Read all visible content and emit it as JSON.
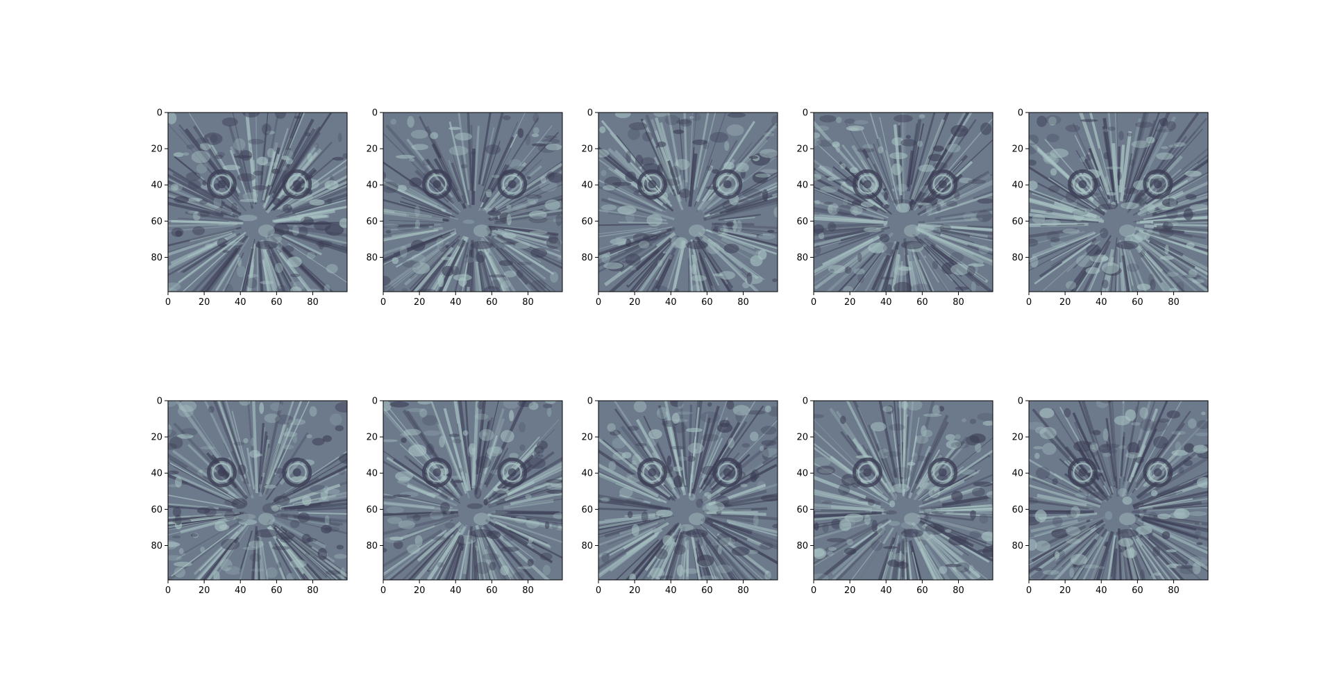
{
  "chart_data": [
    {
      "type": "heatmap",
      "panel": 1,
      "xlim": [
        0,
        99
      ],
      "ylim": [
        99,
        0
      ],
      "x_ticks": [
        0,
        20,
        40,
        60,
        80
      ],
      "y_ticks": [
        0,
        20,
        40,
        60,
        80
      ],
      "x_tick_labels": [
        "0",
        "20",
        "40",
        "60",
        "80"
      ],
      "y_tick_labels": [
        "0",
        "20",
        "40",
        "60",
        "80"
      ],
      "colormap": "bone",
      "title": "",
      "xlabel": "",
      "ylabel": ""
    },
    {
      "type": "heatmap",
      "panel": 2,
      "xlim": [
        0,
        99
      ],
      "ylim": [
        99,
        0
      ],
      "x_ticks": [
        0,
        20,
        40,
        60,
        80
      ],
      "y_ticks": [
        0,
        20,
        40,
        60,
        80
      ],
      "x_tick_labels": [
        "0",
        "20",
        "40",
        "60",
        "80"
      ],
      "y_tick_labels": [
        "0",
        "20",
        "40",
        "60",
        "80"
      ],
      "colormap": "bone",
      "title": "",
      "xlabel": "",
      "ylabel": ""
    },
    {
      "type": "heatmap",
      "panel": 3,
      "xlim": [
        0,
        99
      ],
      "ylim": [
        99,
        0
      ],
      "x_ticks": [
        0,
        20,
        40,
        60,
        80
      ],
      "y_ticks": [
        0,
        20,
        40,
        60,
        80
      ],
      "x_tick_labels": [
        "0",
        "20",
        "40",
        "60",
        "80"
      ],
      "y_tick_labels": [
        "0",
        "20",
        "40",
        "60",
        "80"
      ],
      "colormap": "bone",
      "title": "",
      "xlabel": "",
      "ylabel": ""
    },
    {
      "type": "heatmap",
      "panel": 4,
      "xlim": [
        0,
        99
      ],
      "ylim": [
        99,
        0
      ],
      "x_ticks": [
        0,
        20,
        40,
        60,
        80
      ],
      "y_ticks": [
        0,
        20,
        40,
        60,
        80
      ],
      "x_tick_labels": [
        "0",
        "20",
        "40",
        "60",
        "80"
      ],
      "y_tick_labels": [
        "0",
        "20",
        "40",
        "60",
        "80"
      ],
      "colormap": "bone",
      "title": "",
      "xlabel": "",
      "ylabel": ""
    },
    {
      "type": "heatmap",
      "panel": 5,
      "xlim": [
        0,
        99
      ],
      "ylim": [
        99,
        0
      ],
      "x_ticks": [
        0,
        20,
        40,
        60,
        80
      ],
      "y_ticks": [
        0,
        20,
        40,
        60,
        80
      ],
      "x_tick_labels": [
        "0",
        "20",
        "40",
        "60",
        "80"
      ],
      "y_tick_labels": [
        "0",
        "20",
        "40",
        "60",
        "80"
      ],
      "colormap": "bone",
      "title": "",
      "xlabel": "",
      "ylabel": ""
    },
    {
      "type": "heatmap",
      "panel": 6,
      "xlim": [
        0,
        99
      ],
      "ylim": [
        99,
        0
      ],
      "x_ticks": [
        0,
        20,
        40,
        60,
        80
      ],
      "y_ticks": [
        0,
        20,
        40,
        60,
        80
      ],
      "x_tick_labels": [
        "0",
        "20",
        "40",
        "60",
        "80"
      ],
      "y_tick_labels": [
        "0",
        "20",
        "40",
        "60",
        "80"
      ],
      "colormap": "bone",
      "title": "",
      "xlabel": "",
      "ylabel": ""
    },
    {
      "type": "heatmap",
      "panel": 7,
      "xlim": [
        0,
        99
      ],
      "ylim": [
        99,
        0
      ],
      "x_ticks": [
        0,
        20,
        40,
        60,
        80
      ],
      "y_ticks": [
        0,
        20,
        40,
        60,
        80
      ],
      "x_tick_labels": [
        "0",
        "20",
        "40",
        "60",
        "80"
      ],
      "y_tick_labels": [
        "0",
        "20",
        "40",
        "60",
        "80"
      ],
      "colormap": "bone",
      "title": "",
      "xlabel": "",
      "ylabel": ""
    },
    {
      "type": "heatmap",
      "panel": 8,
      "xlim": [
        0,
        99
      ],
      "ylim": [
        99,
        0
      ],
      "x_ticks": [
        0,
        20,
        40,
        60,
        80
      ],
      "y_ticks": [
        0,
        20,
        40,
        60,
        80
      ],
      "x_tick_labels": [
        "0",
        "20",
        "40",
        "60",
        "80"
      ],
      "y_tick_labels": [
        "0",
        "20",
        "40",
        "60",
        "80"
      ],
      "colormap": "bone",
      "title": "",
      "xlabel": "",
      "ylabel": ""
    },
    {
      "type": "heatmap",
      "panel": 9,
      "xlim": [
        0,
        99
      ],
      "ylim": [
        99,
        0
      ],
      "x_ticks": [
        0,
        20,
        40,
        60,
        80
      ],
      "y_ticks": [
        0,
        20,
        40,
        60,
        80
      ],
      "x_tick_labels": [
        "0",
        "20",
        "40",
        "60",
        "80"
      ],
      "y_tick_labels": [
        "0",
        "20",
        "40",
        "60",
        "80"
      ],
      "colormap": "bone",
      "title": "",
      "xlabel": "",
      "ylabel": ""
    },
    {
      "type": "heatmap",
      "panel": 10,
      "xlim": [
        0,
        99
      ],
      "ylim": [
        99,
        0
      ],
      "x_ticks": [
        0,
        20,
        40,
        60,
        80
      ],
      "y_ticks": [
        0,
        20,
        40,
        60,
        80
      ],
      "x_tick_labels": [
        "0",
        "20",
        "40",
        "60",
        "80"
      ],
      "y_tick_labels": [
        "0",
        "20",
        "40",
        "60",
        "80"
      ],
      "colormap": "bone",
      "title": "",
      "xlabel": "",
      "ylabel": ""
    }
  ],
  "colors": {
    "dark": "#3c3e55",
    "mid": "#6d7a8c",
    "light": "#a9c4c4",
    "frame": "#000000"
  }
}
